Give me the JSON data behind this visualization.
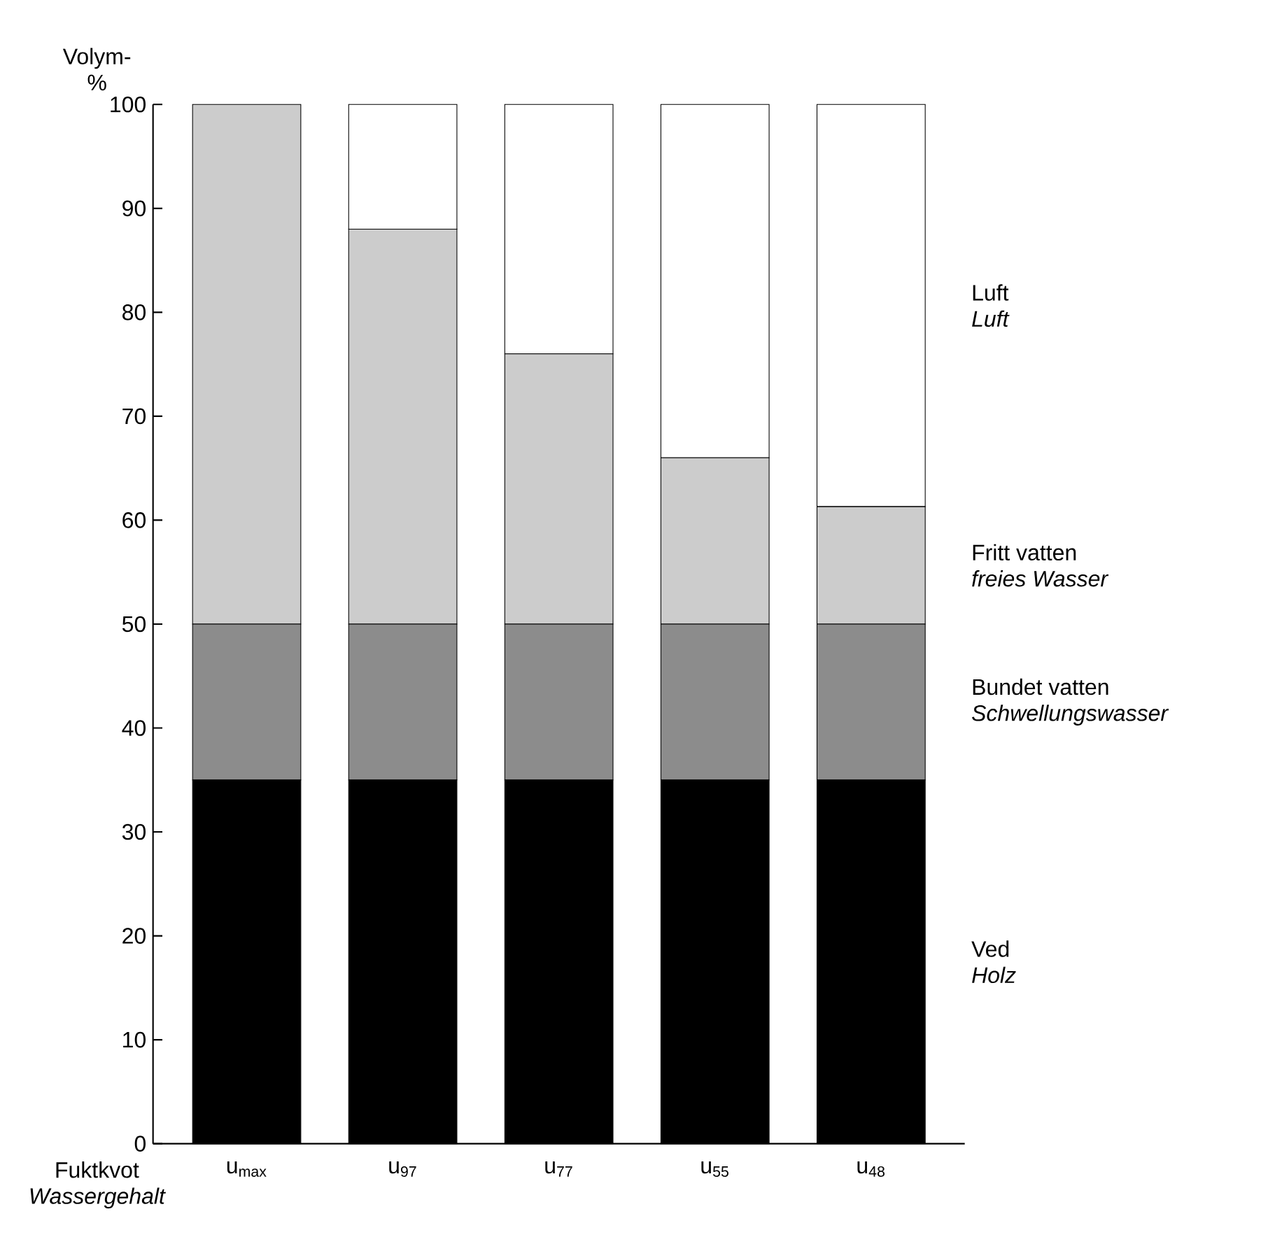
{
  "chart_data": {
    "type": "bar",
    "stacked": true,
    "ylabel": "Volym- %",
    "xlabel": "Fuktkvot",
    "categories": [
      "u$_{max}$",
      "u$_{97}$",
      "u$_{77}$",
      "u$_{55}$",
      "u$_{48}$"
    ],
    "series": [
      {
        "name": "Ved",
        "color": "#000000",
        "values": [
          35,
          35,
          35,
          35,
          35
        ]
      },
      {
        "name": "Bundet vatten",
        "color": "#8c8c8c",
        "values": [
          15,
          15,
          15,
          15,
          15
        ]
      },
      {
        "name": "Fritt vatten",
        "color": "#cccccc",
        "values": [
          50,
          38,
          26,
          16,
          11.3
        ]
      },
      {
        "name": "Luft",
        "color": "#ffffff",
        "values": [
          0,
          12,
          24,
          34,
          38.7
        ]
      }
    ],
    "annotations": [
      "Holz",
      "Schwellungswasser",
      "freies Wasser",
      "Luft",
      "Wassergehalt"
    ],
    "ylim": [
      0,
      100
    ],
    "yticks": [
      0,
      10,
      20,
      30,
      40,
      50,
      60,
      70,
      80,
      90,
      100
    ]
  }
}
